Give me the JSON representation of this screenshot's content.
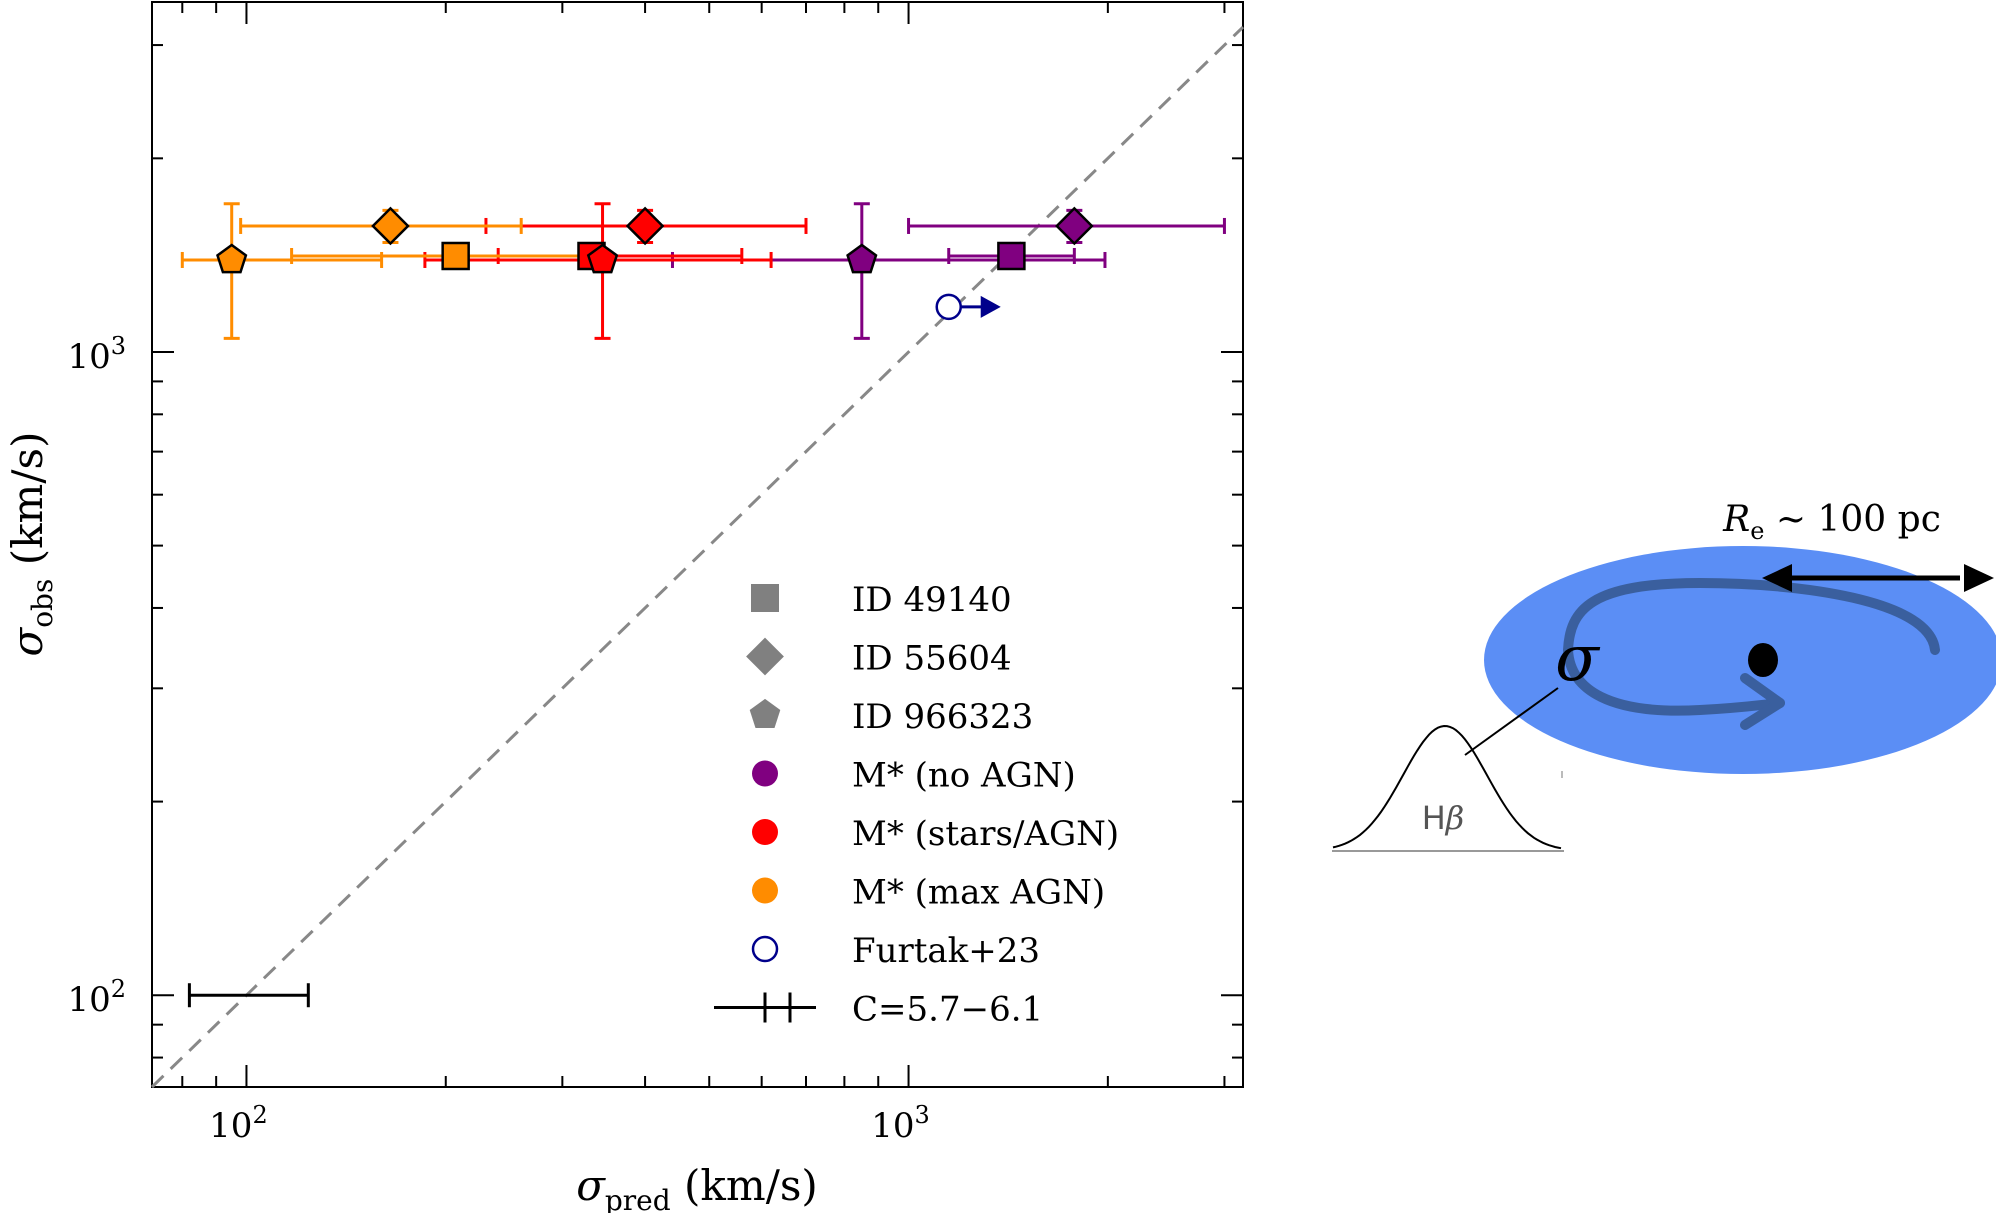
{
  "chart_data": {
    "type": "scatter",
    "xlabel": {
      "symbol": "σ",
      "sub": "pred",
      "unit": " (km/s)"
    },
    "ylabel": {
      "symbol": "σ",
      "sub": "obs",
      "unit": " (km/s)"
    },
    "xscale": "log",
    "yscale": "log",
    "xlim": [
      72,
      3200
    ],
    "ylim": [
      72,
      3500
    ],
    "xticks": [
      {
        "base": "10",
        "exp": "2",
        "value": 100
      },
      {
        "base": "10",
        "exp": "3",
        "value": 1000
      }
    ],
    "yticks": [
      {
        "base": "10",
        "exp": "2",
        "value": 100
      },
      {
        "base": "10",
        "exp": "3",
        "value": 1000
      }
    ],
    "grid": false,
    "one_to_one_line": true,
    "legend_position": "lower-right",
    "legend": [
      {
        "label": "ID 49140",
        "marker": "square",
        "color": "#808080",
        "filled": true
      },
      {
        "label": "ID 55604",
        "marker": "diamond",
        "color": "#808080",
        "filled": true
      },
      {
        "label": "ID 966323",
        "marker": "pentagon",
        "color": "#808080",
        "filled": true
      },
      {
        "label": "M* (no AGN)",
        "marker": "circle",
        "color": "#800080",
        "filled": true
      },
      {
        "label": "M* (stars/AGN)",
        "marker": "circle",
        "color": "#ff0000",
        "filled": true
      },
      {
        "label": "M* (max AGN)",
        "marker": "circle",
        "color": "#ff8c00",
        "filled": true
      },
      {
        "label": "Furtak+23",
        "marker": "circle",
        "color": "#00008b",
        "filled": false
      },
      {
        "label": "C=5.7−6.1",
        "marker": "errorbar",
        "color": "#000000",
        "filled": false
      }
    ],
    "points": [
      {
        "id": "ID 49140",
        "model": "M* (no AGN)",
        "marker": "square",
        "color": "#800080",
        "x": 1430,
        "y": 1410,
        "xerr": [
          1150,
          1780
        ],
        "yerr": [
          1360,
          1460
        ]
      },
      {
        "id": "ID 55604",
        "model": "M* (no AGN)",
        "marker": "diamond",
        "color": "#800080",
        "x": 1780,
        "y": 1570,
        "xerr": [
          1000,
          3000
        ],
        "yerr": [
          1480,
          1660
        ]
      },
      {
        "id": "ID 966323",
        "model": "M* (no AGN)",
        "marker": "pentagon",
        "color": "#800080",
        "x": 850,
        "y": 1390,
        "xerr": [
          440,
          1980
        ],
        "yerr": [
          1050,
          1700
        ]
      },
      {
        "id": "ID 49140",
        "model": "M* (stars/AGN)",
        "marker": "square",
        "color": "#ff0000",
        "x": 332,
        "y": 1410,
        "xerr": [
          240,
          560
        ],
        "yerr": [
          1360,
          1460
        ]
      },
      {
        "id": "ID 55604",
        "model": "M* (stars/AGN)",
        "marker": "diamond",
        "color": "#ff0000",
        "x": 400,
        "y": 1570,
        "xerr": [
          230,
          700
        ],
        "yerr": [
          1480,
          1660
        ]
      },
      {
        "id": "ID 966323",
        "model": "M* (stars/AGN)",
        "marker": "pentagon",
        "color": "#ff0000",
        "x": 345,
        "y": 1390,
        "xerr": [
          186,
          620
        ],
        "yerr": [
          1050,
          1700
        ]
      },
      {
        "id": "ID 49140",
        "model": "M* (max AGN)",
        "marker": "square",
        "color": "#ff8c00",
        "x": 207,
        "y": 1410,
        "xerr": [
          117,
          340
        ],
        "yerr": [
          1360,
          1460
        ]
      },
      {
        "id": "ID 55604",
        "model": "M* (max AGN)",
        "marker": "diamond",
        "color": "#ff8c00",
        "x": 165,
        "y": 1570,
        "xerr": [
          98,
          260
        ],
        "yerr": [
          1480,
          1660
        ]
      },
      {
        "id": "ID 966323",
        "model": "M* (max AGN)",
        "marker": "pentagon",
        "color": "#ff8c00",
        "x": 95,
        "y": 1390,
        "xerr": [
          80,
          160
        ],
        "yerr": [
          1050,
          1700
        ]
      },
      {
        "id": "Furtak+23",
        "model": "Furtak+23",
        "marker": "circle-open",
        "color": "#00008b",
        "x": 1150,
        "y": 1175,
        "lower_limit_x": true
      }
    ],
    "c_errorbar": {
      "x": [
        82,
        124
      ],
      "y": 100
    }
  },
  "illustration": {
    "radius_label": {
      "symbol": "R",
      "sub": "e",
      "rest": " ~ 100 pc"
    },
    "sigma_symbol": "σ",
    "line_label": {
      "prefix": "H",
      "symbol": "β"
    },
    "disk_color": "#5b8ef5",
    "rotation_arrow_color": "#3a5f9e"
  }
}
